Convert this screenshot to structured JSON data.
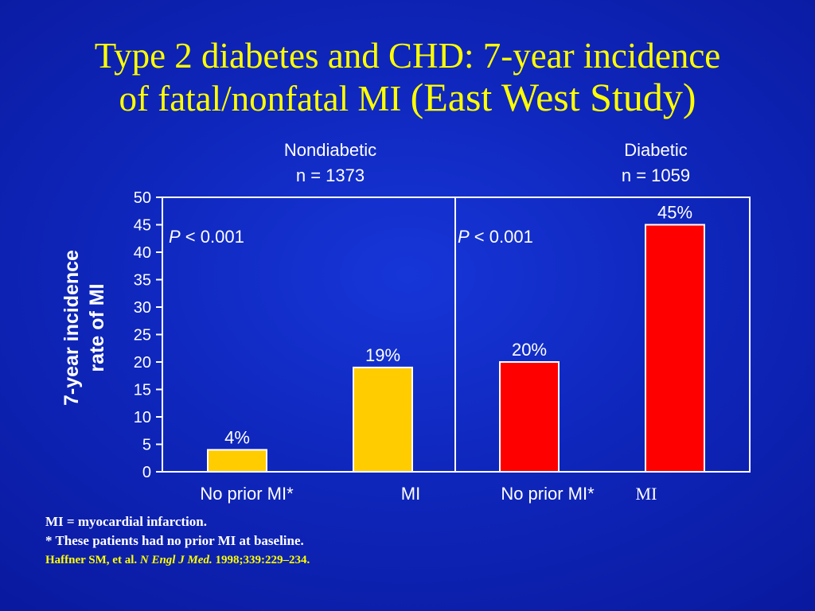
{
  "title": {
    "line1": "Type 2 diabetes and CHD: 7-year incidence",
    "line2_a": "of fatal/nonfatal MI ",
    "line2_b": "(East West Study)"
  },
  "groups": [
    {
      "name": "Nondiabetic",
      "n": "n = 1373"
    },
    {
      "name": "Diabetic",
      "n": "n = 1059"
    }
  ],
  "chart_data": {
    "type": "bar",
    "ylabel_line1": "7-year incidence",
    "ylabel_line2": "rate of MI",
    "ylim": [
      0,
      50
    ],
    "yticks": [
      0,
      5,
      10,
      15,
      20,
      25,
      30,
      35,
      40,
      45,
      50
    ],
    "categories": [
      "No prior MI*",
      "MI",
      "No prior MI*",
      "MI"
    ],
    "values": [
      4,
      19,
      20,
      45
    ],
    "data_labels": [
      "4%",
      "19%",
      "20%",
      "45%"
    ],
    "bar_colors": [
      "#ffcc00",
      "#ffcc00",
      "#ff0000",
      "#ff0000"
    ],
    "annotations": [
      {
        "italic": "P",
        "text": " < 0.001"
      },
      {
        "italic": "P",
        "text": " < 0.001"
      }
    ]
  },
  "footnotes": {
    "line1": "MI = myocardial infarction.",
    "line2": "* These patients had no prior MI at baseline.",
    "cite_authors": "Haffner SM, et al. ",
    "cite_journal": "N Engl J Med.",
    "cite_rest": " 1998;339:229–234."
  }
}
